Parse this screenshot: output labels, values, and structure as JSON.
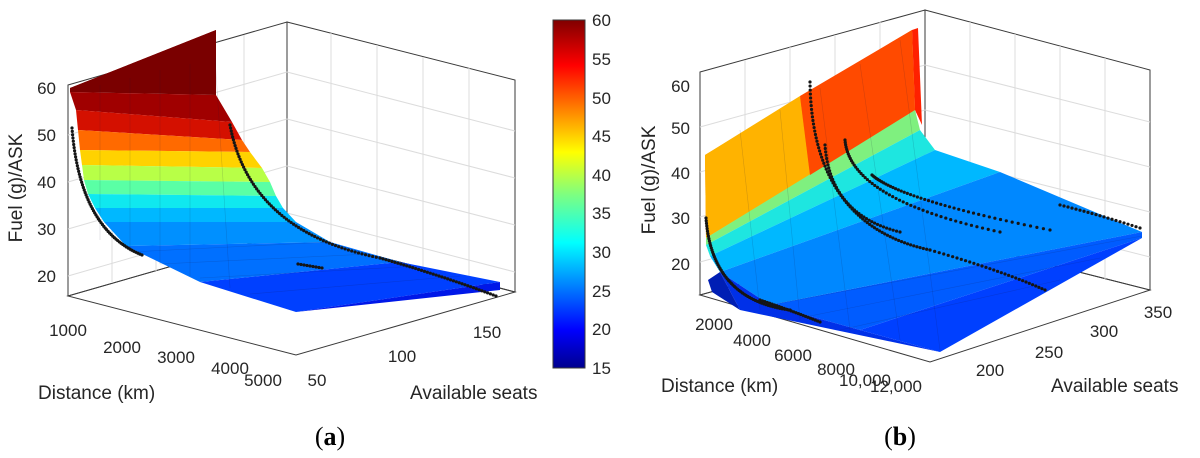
{
  "chart_data": [
    {
      "type": "surface",
      "panel_label": "a",
      "xlabel": "Distance (km)",
      "ylabel": "Available seats",
      "zlabel": "Fuel (g)/ASK",
      "x_ticks": [
        "1000",
        "2000",
        "3000",
        "4000",
        "5000"
      ],
      "y_ticks": [
        "50",
        "100",
        "150"
      ],
      "z_ticks": [
        "20",
        "30",
        "40",
        "50",
        "60"
      ],
      "x_range": [
        500,
        5300
      ],
      "y_range": [
        50,
        180
      ],
      "z_range": [
        15,
        60
      ],
      "surface_bands": [
        60,
        58,
        52,
        47,
        42,
        38,
        35,
        32,
        29,
        26,
        23,
        20,
        17
      ],
      "scatter_series_count": 2
    },
    {
      "type": "surface",
      "panel_label": "b",
      "xlabel": "Distance (km)",
      "ylabel": "Available seats",
      "zlabel": "Fuel (g)/ASK",
      "x_ticks": [
        "2000",
        "4000",
        "6000",
        "8000",
        "10,000",
        "12,000"
      ],
      "y_ticks": [
        "200",
        "250",
        "300",
        "350"
      ],
      "z_ticks": [
        "20",
        "30",
        "40",
        "50",
        "60"
      ],
      "x_range": [
        1000,
        13000
      ],
      "y_range": [
        180,
        370
      ],
      "z_range": [
        15,
        60
      ],
      "surface_bands": [
        60,
        55,
        48,
        42,
        36,
        31,
        27,
        24,
        21,
        19,
        17
      ],
      "scatter_series_count": 6
    }
  ],
  "colorbar": {
    "min": 15,
    "max": 60,
    "ticks": [
      "15",
      "20",
      "25",
      "30",
      "35",
      "40",
      "45",
      "50",
      "55",
      "60"
    ]
  },
  "captions": {
    "a_open": "(",
    "a_letter": "a",
    "a_close": ")",
    "b_open": "(",
    "b_letter": "b",
    "b_close": ")"
  }
}
